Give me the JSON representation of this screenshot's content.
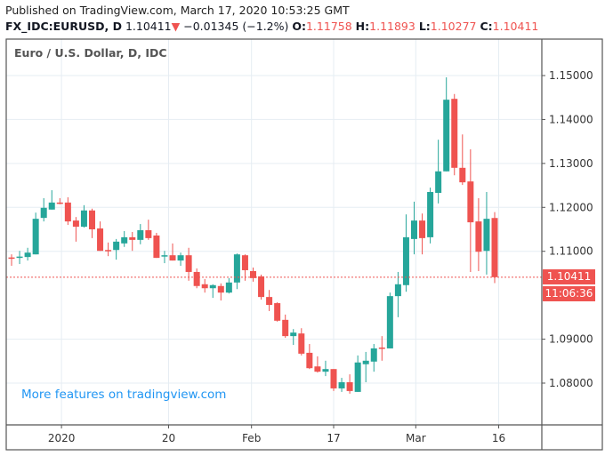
{
  "header": {
    "published": "Published on TradingView.com, March 17, 2020 10:53:25 GMT",
    "symbol": "FX_IDC:EURUSD, D",
    "last": "1.10411",
    "change": "−0.01345 (−1.2%)",
    "direction_icon": "triangle-down-icon",
    "o_label": "O:",
    "o": "1.11758",
    "h_label": "H:",
    "h": "1.11893",
    "l_label": "L:",
    "l": "1.10277",
    "c_label": "C:",
    "c": "1.10411"
  },
  "colors": {
    "up": "#26a69a",
    "down": "#ef5350",
    "grid": "#e6edf3",
    "watermark": "#2196f3"
  },
  "watermark": "More features on tradingview.com",
  "price_label": "1.10411",
  "countdown_label": "11:06:36",
  "chart_data": {
    "type": "candlestick",
    "title": "Euro / U.S. Dollar, D, IDC",
    "ylim": [
      1.0705,
      1.1582
    ],
    "y_ticks": [
      "1.15000",
      "1.14000",
      "1.13000",
      "1.12000",
      "1.11000",
      "1.09000",
      "1.08000"
    ],
    "y_tick_values": [
      1.15,
      1.14,
      1.13,
      1.12,
      1.11,
      1.09,
      1.08
    ],
    "x_ticks": [
      {
        "label": "2020",
        "index": 6.2
      },
      {
        "label": "20",
        "index": 19.5
      },
      {
        "label": "Feb",
        "index": 29.8
      },
      {
        "label": "17",
        "index": 40
      },
      {
        "label": "Mar",
        "index": 50.2
      },
      {
        "label": "16",
        "index": 60.5
      }
    ],
    "last_price": 1.10411,
    "ohlc": [
      [
        1.1086,
        1.1093,
        1.1067,
        1.1085
      ],
      [
        1.1086,
        1.1101,
        1.1071,
        1.1088
      ],
      [
        1.1087,
        1.1108,
        1.1079,
        1.1097
      ],
      [
        1.1093,
        1.1188,
        1.1093,
        1.1174
      ],
      [
        1.1176,
        1.1221,
        1.1168,
        1.1199
      ],
      [
        1.1195,
        1.1239,
        1.1195,
        1.1211
      ],
      [
        1.1211,
        1.1221,
        1.1207,
        1.1209
      ],
      [
        1.1211,
        1.1223,
        1.116,
        1.1168
      ],
      [
        1.117,
        1.1178,
        1.1122,
        1.1156
      ],
      [
        1.1156,
        1.1205,
        1.1154,
        1.1193
      ],
      [
        1.1193,
        1.1197,
        1.113,
        1.115
      ],
      [
        1.1152,
        1.1168,
        1.1101,
        1.1101
      ],
      [
        1.1103,
        1.112,
        1.1089,
        1.1101
      ],
      [
        1.1103,
        1.1128,
        1.1081,
        1.1122
      ],
      [
        1.1118,
        1.1146,
        1.111,
        1.1132
      ],
      [
        1.1132,
        1.1144,
        1.1101,
        1.1126
      ],
      [
        1.1126,
        1.1162,
        1.1116,
        1.1148
      ],
      [
        1.1148,
        1.1172,
        1.1126,
        1.113
      ],
      [
        1.1136,
        1.1142,
        1.1085,
        1.1085
      ],
      [
        1.1089,
        1.1101,
        1.1073,
        1.1091
      ],
      [
        1.1091,
        1.1118,
        1.1079,
        1.1079
      ],
      [
        1.1079,
        1.1097,
        1.1067,
        1.1091
      ],
      [
        1.1091,
        1.1108,
        1.1033,
        1.1053
      ],
      [
        1.1053,
        1.1061,
        1.1016,
        1.1021
      ],
      [
        1.1025,
        1.1037,
        1.1006,
        1.1016
      ],
      [
        1.1016,
        1.1025,
        1.0994,
        1.1023
      ],
      [
        1.1021,
        1.1027,
        1.0988,
        1.1006
      ],
      [
        1.1006,
        1.1039,
        1.1004,
        1.1029
      ],
      [
        1.1029,
        1.1095,
        1.1014,
        1.1093
      ],
      [
        1.1091,
        1.1093,
        1.1033,
        1.1057
      ],
      [
        1.1055,
        1.1063,
        1.1031,
        1.1039
      ],
      [
        1.1043,
        1.1047,
        1.099,
        1.0996
      ],
      [
        1.0996,
        1.1012,
        1.0964,
        1.0978
      ],
      [
        1.0982,
        1.0984,
        1.094,
        1.0942
      ],
      [
        1.0944,
        1.0956,
        1.0903,
        1.0907
      ],
      [
        1.0907,
        1.0923,
        1.0887,
        1.0915
      ],
      [
        1.0913,
        1.0925,
        1.0863,
        1.0867
      ],
      [
        1.0869,
        1.0889,
        1.0832,
        1.0834
      ],
      [
        1.0838,
        1.0861,
        1.0824,
        1.0826
      ],
      [
        1.0826,
        1.0851,
        1.0816,
        1.0832
      ],
      [
        1.0832,
        1.0832,
        1.0782,
        1.0788
      ],
      [
        1.0788,
        1.0812,
        1.078,
        1.0802
      ],
      [
        1.0802,
        1.082,
        1.0776,
        1.0782
      ],
      [
        1.078,
        1.0863,
        1.078,
        1.0847
      ],
      [
        1.0843,
        1.0871,
        1.0802,
        1.0851
      ],
      [
        1.0849,
        1.0889,
        1.0826,
        1.0879
      ],
      [
        1.0881,
        1.0907,
        1.0851,
        1.0879
      ],
      [
        1.0879,
        1.1006,
        1.0879,
        1.0998
      ],
      [
        1.0998,
        1.1053,
        1.095,
        1.1025
      ],
      [
        1.1023,
        1.1184,
        1.1008,
        1.1132
      ],
      [
        1.1128,
        1.1213,
        1.1093,
        1.117
      ],
      [
        1.117,
        1.1186,
        1.1093,
        1.113
      ],
      [
        1.1132,
        1.1245,
        1.1118,
        1.1235
      ],
      [
        1.1233,
        1.1354,
        1.1209,
        1.1282
      ],
      [
        1.1282,
        1.1496,
        1.1282,
        1.1445
      ],
      [
        1.1447,
        1.1458,
        1.1273,
        1.129
      ],
      [
        1.129,
        1.1366,
        1.1251,
        1.1257
      ],
      [
        1.1259,
        1.1332,
        1.1053,
        1.1166
      ],
      [
        1.1168,
        1.1221,
        1.1055,
        1.1099
      ],
      [
        1.1101,
        1.1235,
        1.1047,
        1.1174
      ],
      [
        1.11758,
        1.11893,
        1.10277,
        1.10411
      ]
    ]
  }
}
